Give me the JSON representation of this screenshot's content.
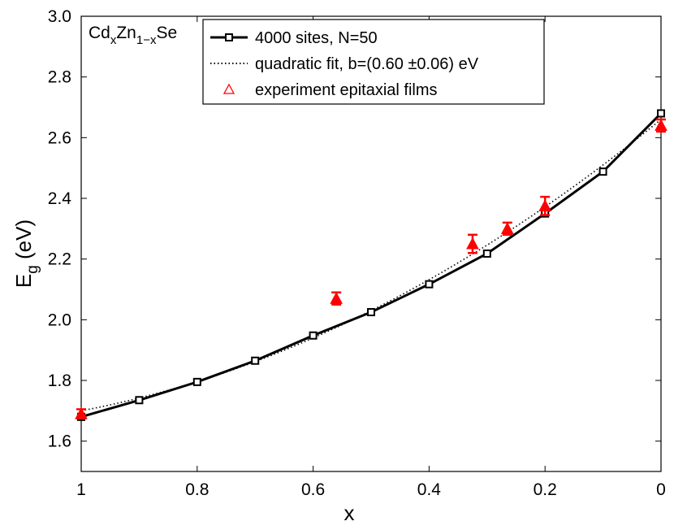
{
  "chart_data": {
    "type": "line",
    "title": "",
    "composition_label": {
      "base1": "Cd",
      "sub1": "x",
      "base2": "Zn",
      "sub2": "1−x",
      "base3": "Se"
    },
    "xlabel": "x",
    "ylabel": {
      "base": "E",
      "sub": "g",
      "unit": " (eV)"
    },
    "xlim": [
      1,
      0
    ],
    "ylim": [
      1.5,
      3.0
    ],
    "x_ticks": [
      1,
      0.8,
      0.6,
      0.4,
      0.2,
      0
    ],
    "x_tick_labels": [
      "1",
      "0.8",
      "0.6",
      "0.4",
      "0.2",
      "0"
    ],
    "y_ticks": [
      1.6,
      1.8,
      2.0,
      2.2,
      2.4,
      2.6,
      2.8,
      3.0
    ],
    "y_tick_labels": [
      "1.6",
      "1.8",
      "2.0",
      "2.2",
      "2.4",
      "2.6",
      "2.8",
      "3.0"
    ],
    "legend_position": "top-center",
    "series": [
      {
        "name": "4000 sites, N=50",
        "style": "solid-line-square-markers",
        "color": "#000000",
        "x": [
          1.0,
          0.9,
          0.8,
          0.7,
          0.6,
          0.5,
          0.4,
          0.3,
          0.2,
          0.1,
          0.0
        ],
        "y": [
          1.68,
          1.735,
          1.795,
          1.865,
          1.948,
          2.025,
          2.117,
          2.218,
          2.35,
          2.488,
          2.68
        ]
      },
      {
        "name": "quadratic fit, b=(0.60 ±0.06) eV",
        "style": "dotted-line",
        "color": "#000000",
        "Eg_x0": 2.66,
        "Eg_x1": 1.7,
        "bowing_b": 0.6
      },
      {
        "name": "experiment epitaxial films",
        "style": "triangle-markers-errorbars",
        "color": "#ff0000",
        "x": [
          1.0,
          0.56,
          0.325,
          0.265,
          0.2,
          0.0
        ],
        "y": [
          1.69,
          2.07,
          2.25,
          2.3,
          2.375,
          2.64
        ],
        "err": [
          0.015,
          0.02,
          0.03,
          0.02,
          0.03,
          0.02
        ]
      }
    ]
  }
}
